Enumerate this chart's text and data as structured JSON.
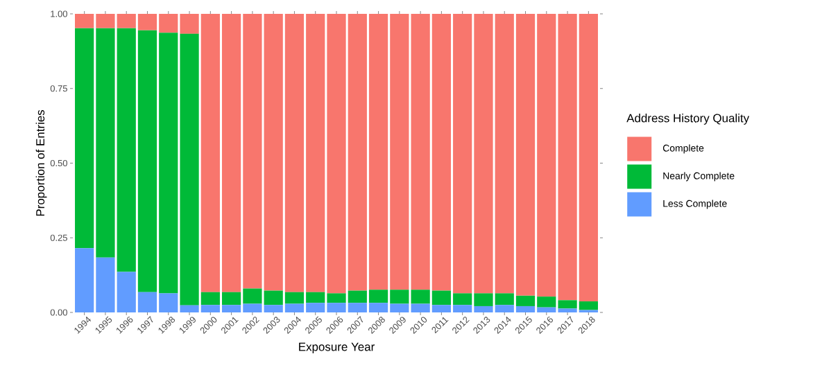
{
  "chart_data": {
    "type": "bar",
    "stacked": true,
    "xlabel": "Exposure Year",
    "ylabel": "Proportion of Entries",
    "legend_title": "Address History Quality",
    "legend": "right",
    "categories": [
      "1994",
      "1995",
      "1996",
      "1997",
      "1998",
      "1999",
      "2000",
      "2001",
      "2002",
      "2003",
      "2004",
      "2005",
      "2006",
      "2007",
      "2008",
      "2009",
      "2010",
      "2011",
      "2012",
      "2013",
      "2014",
      "2015",
      "2016",
      "2017",
      "2018"
    ],
    "ylim": [
      0,
      1
    ],
    "yticks": [
      {
        "value": 0,
        "label": "0.00"
      },
      {
        "value": 0.25,
        "label": "0.25"
      },
      {
        "value": 0.5,
        "label": "0.50"
      },
      {
        "value": 0.75,
        "label": "0.75"
      },
      {
        "value": 1,
        "label": "1.00"
      }
    ],
    "series": [
      {
        "name": "Less Complete",
        "color": "#619cff",
        "values": [
          0.215,
          0.184,
          0.136,
          0.068,
          0.064,
          0.024,
          0.025,
          0.025,
          0.029,
          0.025,
          0.029,
          0.032,
          0.032,
          0.032,
          0.032,
          0.029,
          0.029,
          0.025,
          0.025,
          0.021,
          0.025,
          0.021,
          0.017,
          0.013,
          0.008
        ]
      },
      {
        "name": "Nearly Complete",
        "color": "#00ba38",
        "values": [
          0.737,
          0.768,
          0.816,
          0.877,
          0.873,
          0.909,
          0.043,
          0.043,
          0.051,
          0.048,
          0.039,
          0.036,
          0.032,
          0.041,
          0.044,
          0.047,
          0.047,
          0.048,
          0.039,
          0.043,
          0.039,
          0.035,
          0.036,
          0.028,
          0.029
        ]
      },
      {
        "name": "Complete",
        "color": "#f8766d",
        "values": [
          0.048,
          0.048,
          0.048,
          0.055,
          0.063,
          0.067,
          0.932,
          0.932,
          0.92,
          0.927,
          0.932,
          0.932,
          0.936,
          0.927,
          0.924,
          0.924,
          0.924,
          0.927,
          0.936,
          0.936,
          0.936,
          0.944,
          0.947,
          0.959,
          0.963
        ]
      }
    ]
  }
}
